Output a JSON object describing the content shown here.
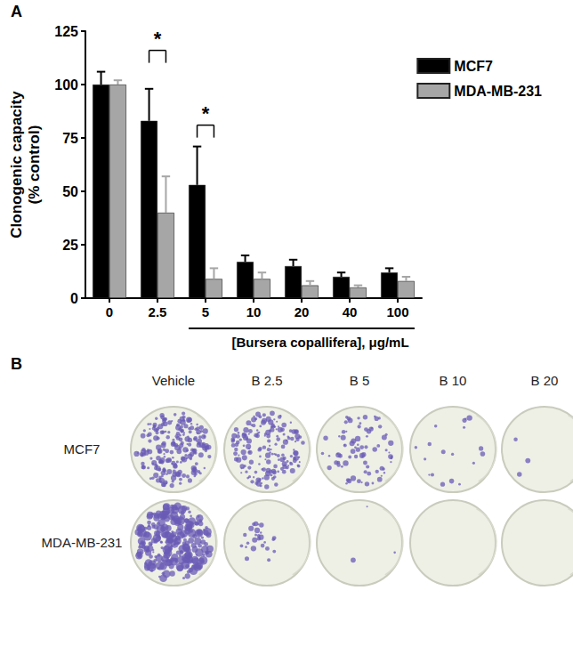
{
  "chart_data": {
    "type": "bar",
    "panel_label": "A",
    "categories": [
      "0",
      "2.5",
      "5",
      "10",
      "20",
      "40",
      "100"
    ],
    "series": [
      {
        "name": "MCF7",
        "color": "#000000",
        "values": [
          100,
          83,
          53,
          17,
          15,
          10,
          12
        ],
        "errors": [
          6,
          15,
          18,
          3,
          3,
          2,
          2
        ]
      },
      {
        "name": "MDA-MB-231",
        "color": "#a6a6a6",
        "values": [
          100,
          40,
          9,
          9,
          6,
          5,
          8
        ],
        "errors": [
          2,
          17,
          5,
          3,
          2,
          1,
          2
        ]
      }
    ],
    "y_label": "Clonogenic capacity\n(% control)",
    "x_label": "[Bursera copallifera], μg/mL",
    "ylim": [
      0,
      125
    ],
    "yticks": [
      0,
      25,
      50,
      75,
      100,
      125
    ],
    "grid": false,
    "legend": "top-right",
    "annotations": [
      {
        "category": "2.5",
        "y": 116,
        "text": "*"
      },
      {
        "category": "5",
        "y": 81,
        "text": "*"
      }
    ]
  },
  "panel_b": {
    "label": "B",
    "columns": [
      "Vehicle",
      "B 2.5",
      "B 5",
      "B 10",
      "B 20"
    ],
    "rows": [
      "MCF7",
      "MDA-MB-231"
    ]
  }
}
